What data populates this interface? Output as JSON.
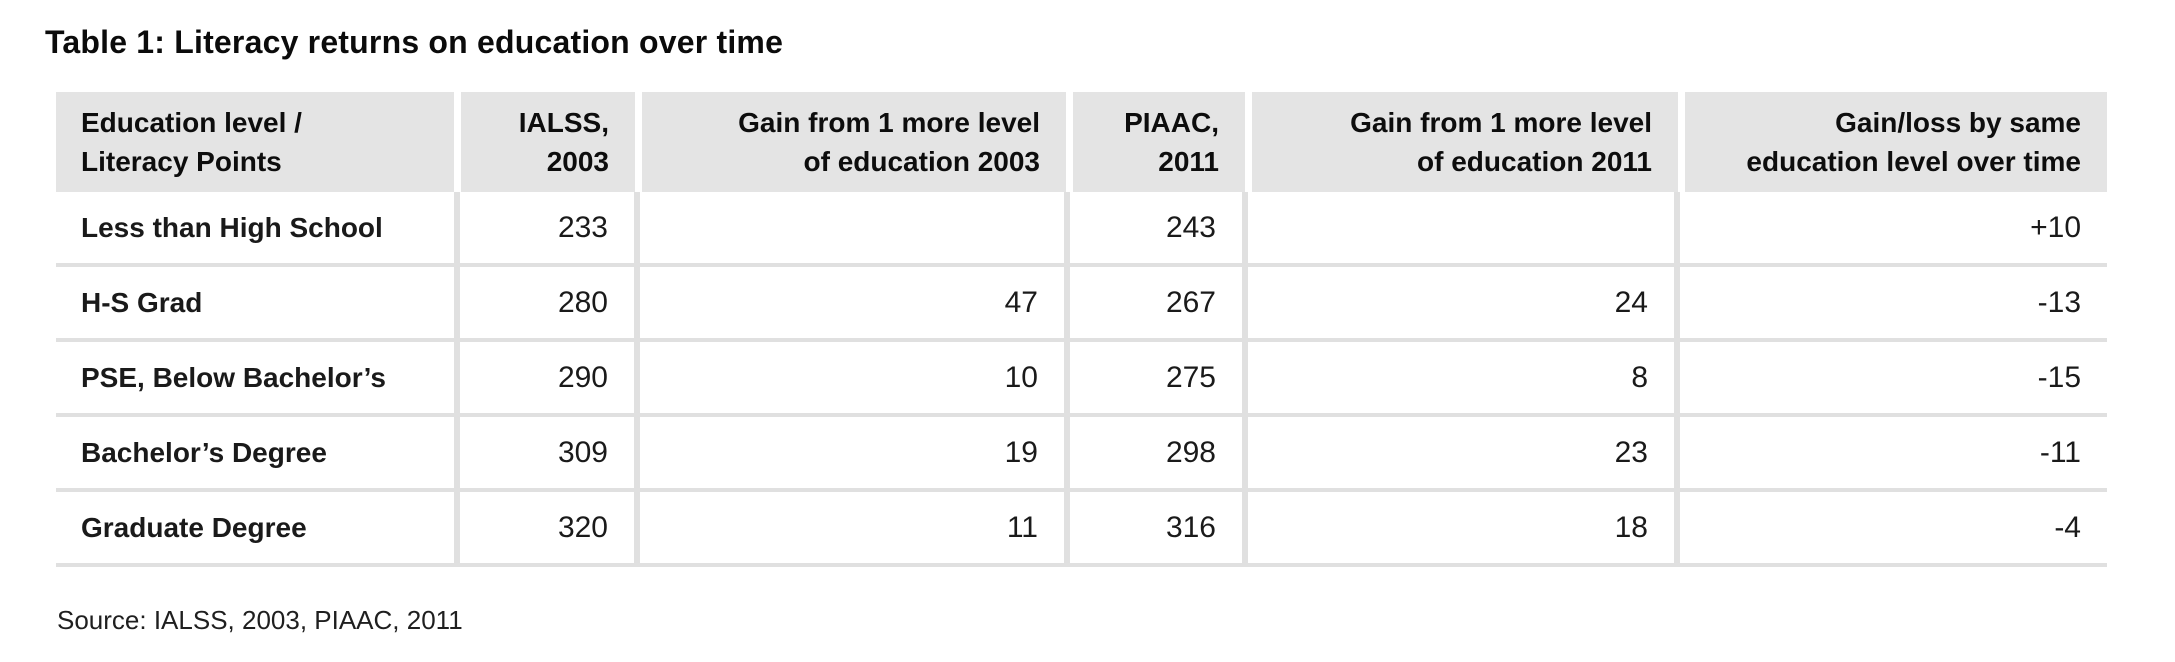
{
  "title": "Table 1: Literacy returns on education over time",
  "source": "Source: IALSS, 2003, PIAAC, 2011",
  "colors": {
    "header_bg": "#e4e4e4",
    "grid_line": "#e0e0e0",
    "text": "#0d0d0d"
  },
  "table": {
    "columns": [
      {
        "label": "Education level /\nLiteracy Points",
        "align": "left"
      },
      {
        "label": "IALSS,\n2003",
        "align": "right"
      },
      {
        "label": "Gain from 1 more level\nof education 2003",
        "align": "right"
      },
      {
        "label": "PIAAC,\n2011",
        "align": "right"
      },
      {
        "label": "Gain from 1 more level\nof education 2011",
        "align": "right"
      },
      {
        "label": "Gain/loss by same\neducation level over time",
        "align": "right"
      }
    ],
    "rows": [
      [
        "Less than High School",
        "233",
        "",
        "243",
        "",
        "+10"
      ],
      [
        "H-S Grad",
        "280",
        "47",
        "267",
        "24",
        "-13"
      ],
      [
        "PSE, Below Bachelor’s",
        "290",
        "10",
        "275",
        "8",
        "-15"
      ],
      [
        "Bachelor’s Degree",
        "309",
        "19",
        "298",
        "23",
        "-11"
      ],
      [
        "Graduate Degree",
        "320",
        "11",
        "316",
        "18",
        "-4"
      ]
    ]
  },
  "chart_data": {
    "type": "table",
    "title": "Table 1: Literacy returns on education over time",
    "categories": [
      "Less than High School",
      "H-S Grad",
      "PSE, Below Bachelor’s",
      "Bachelor’s Degree",
      "Graduate Degree"
    ],
    "series": [
      {
        "name": "IALSS, 2003",
        "values": [
          233,
          280,
          290,
          309,
          320
        ]
      },
      {
        "name": "Gain from 1 more level of education 2003",
        "values": [
          null,
          47,
          10,
          19,
          11
        ]
      },
      {
        "name": "PIAAC, 2011",
        "values": [
          243,
          267,
          275,
          298,
          316
        ]
      },
      {
        "name": "Gain from 1 more level of education 2011",
        "values": [
          null,
          24,
          8,
          23,
          18
        ]
      },
      {
        "name": "Gain/loss by same education level over time",
        "values": [
          10,
          -13,
          -15,
          -11,
          -4
        ]
      }
    ],
    "source": "Source: IALSS, 2003, PIAAC, 2011"
  }
}
